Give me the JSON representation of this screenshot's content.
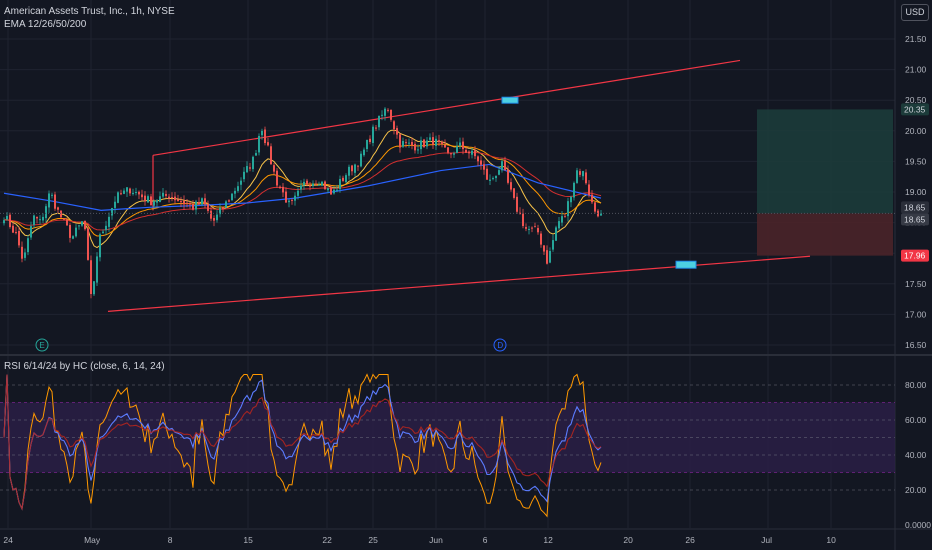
{
  "header": {
    "symbol": "American Assets Trust, Inc., 1h, NYSE",
    "ema": "EMA 12/26/50/200",
    "currency": "USD"
  },
  "rsi_header": "RSI 6/14/24 by HC (close, 6, 14, 24)",
  "markers": {
    "earnings": "E",
    "dividend": "D"
  },
  "price_labels": {
    "target": "20.35",
    "current": "18.65",
    "prior": "18.65",
    "stop": "17.96"
  },
  "colors": {
    "background": "#131722",
    "up": "#26a69a",
    "down": "#ef5350",
    "channel": "#f23645",
    "ema12": "#f7c34a",
    "ema26": "#ff9800",
    "ema50": "#d32f2f",
    "ema200": "#2962ff",
    "rsi6": "#ff9800",
    "rsi14": "#5b7cff",
    "rsi24": "#b3261e",
    "rsi_band": "#2a1f45",
    "target_zone": "#1c3b3a",
    "stop_zone": "#4a2429",
    "highlight": "#4dd0e1"
  },
  "chart_data": [
    {
      "type": "candlestick",
      "title": "American Assets Trust, Inc., 1h, NYSE",
      "x_ticks": [
        "24",
        "May",
        "8",
        "15",
        "22",
        "25",
        "Jun",
        "6",
        "12",
        "20",
        "26",
        "Jul",
        "10"
      ],
      "y_ticks": [
        "21.50",
        "21.00",
        "20.50",
        "20.00",
        "19.50",
        "19.00",
        "18.50",
        "18.00",
        "17.50",
        "17.00",
        "16.50"
      ],
      "ylim": [
        16.4,
        21.7
      ],
      "n_bars": 200,
      "anchors": [
        [
          0,
          18.62
        ],
        [
          5,
          18.3
        ],
        [
          8,
          17.85
        ],
        [
          12,
          18.6
        ],
        [
          15,
          18.5
        ],
        [
          19,
          19.0
        ],
        [
          22,
          18.7
        ],
        [
          28,
          18.25
        ],
        [
          33,
          18.55
        ],
        [
          36,
          17.2
        ],
        [
          39,
          18.2
        ],
        [
          46,
          18.9
        ],
        [
          52,
          19.05
        ],
        [
          60,
          18.85
        ],
        [
          68,
          18.95
        ],
        [
          78,
          18.75
        ],
        [
          82,
          18.85
        ],
        [
          86,
          18.5
        ],
        [
          93,
          18.9
        ],
        [
          103,
          19.55
        ],
        [
          106,
          20.1
        ],
        [
          112,
          19.2
        ],
        [
          118,
          18.75
        ],
        [
          124,
          19.15
        ],
        [
          130,
          19.2
        ],
        [
          135,
          18.95
        ],
        [
          141,
          19.3
        ],
        [
          147,
          19.55
        ],
        [
          152,
          20.0
        ],
        [
          158,
          20.4
        ],
        [
          163,
          19.8
        ],
        [
          170,
          19.75
        ],
        [
          177,
          19.85
        ],
        [
          183,
          19.6
        ],
        [
          188,
          19.75
        ],
        [
          195,
          19.55
        ],
        [
          200,
          19.15
        ],
        [
          205,
          19.45
        ],
        [
          210,
          18.85
        ],
        [
          215,
          18.4
        ],
        [
          220,
          18.35
        ],
        [
          224,
          17.85
        ],
        [
          228,
          18.5
        ],
        [
          231,
          18.6
        ],
        [
          236,
          19.35
        ],
        [
          239,
          19.3
        ],
        [
          243,
          18.7
        ],
        [
          246,
          18.65
        ]
      ],
      "ema_periods": [
        12,
        26,
        50,
        200
      ],
      "ema200_points": [
        [
          0,
          18.98
        ],
        [
          20,
          18.85
        ],
        [
          40,
          18.7
        ],
        [
          60,
          18.75
        ],
        [
          80,
          18.78
        ],
        [
          100,
          18.82
        ],
        [
          120,
          18.9
        ],
        [
          150,
          19.1
        ],
        [
          180,
          19.35
        ],
        [
          200,
          19.45
        ],
        [
          220,
          19.15
        ],
        [
          246,
          18.9
        ]
      ],
      "current_price": 18.65,
      "channel_upper": [
        [
          153,
          19.6
        ],
        [
          740,
          21.15
        ]
      ],
      "channel_lower": [
        [
          108,
          17.05
        ],
        [
          810,
          17.95
        ]
      ],
      "channel_left_edge": [
        [
          153,
          18.7
        ],
        [
          153,
          19.6
        ]
      ],
      "highlight_high": 20.5,
      "highlight_low": 17.82,
      "position": {
        "target": 20.35,
        "entry": 18.65,
        "stop": 17.96
      }
    },
    {
      "type": "line",
      "title": "RSI 6/14/24 by HC (close, 6, 14, 24)",
      "y_ticks": [
        "80.00",
        "60.00",
        "40.00",
        "20.00",
        "0.0000"
      ],
      "ylim": [
        0,
        90
      ],
      "levels": [
        20,
        30,
        40,
        50,
        60,
        70,
        80
      ],
      "band": [
        30,
        70
      ],
      "series": [
        {
          "periods": 6
        },
        {
          "periods": 14
        },
        {
          "periods": 24
        }
      ]
    }
  ]
}
